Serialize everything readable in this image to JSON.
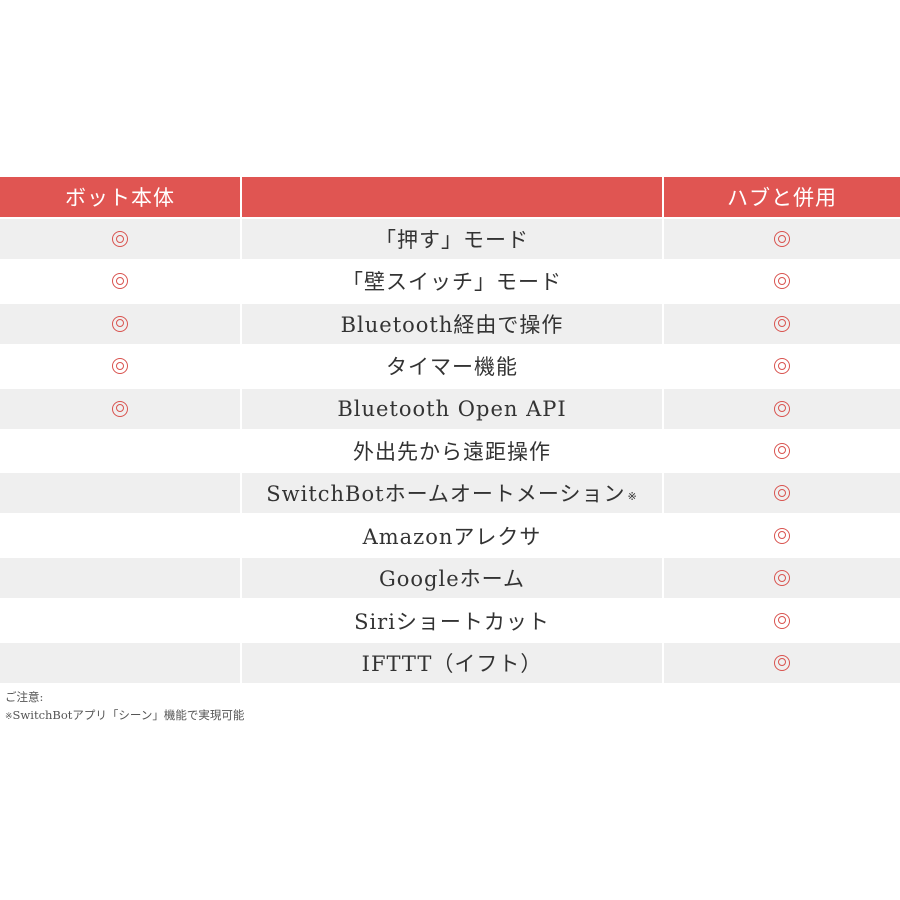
{
  "table": {
    "headers": {
      "bot": "ボット本体",
      "feature": "",
      "hub": "ハブと併用"
    },
    "mark_symbol": "circle-double-icon",
    "accent_color": "#e05552",
    "rows": [
      {
        "feature": "「押す」モード",
        "bot": true,
        "hub": true
      },
      {
        "feature": "「壁スイッチ」モード",
        "bot": true,
        "hub": true
      },
      {
        "feature": "Bluetooth経由で操作",
        "bot": true,
        "hub": true
      },
      {
        "feature": "タイマー機能",
        "bot": true,
        "hub": true
      },
      {
        "feature": "Bluetooth Open API",
        "bot": true,
        "hub": true
      },
      {
        "feature": "外出先から遠距操作",
        "bot": false,
        "hub": true
      },
      {
        "feature": "SwitchBotホームオートメーション",
        "note": "※",
        "bot": false,
        "hub": true
      },
      {
        "feature": "Amazonアレクサ",
        "bot": false,
        "hub": true
      },
      {
        "feature": "Googleホーム",
        "bot": false,
        "hub": true
      },
      {
        "feature": "Siriショートカット",
        "bot": false,
        "hub": true
      },
      {
        "feature": "IFTTT（イフト）",
        "bot": false,
        "hub": true
      }
    ]
  },
  "notes": {
    "title": "ご注意:",
    "ref_mark": "※",
    "text": "SwitchBotアプリ「シーン」機能で実現可能"
  }
}
